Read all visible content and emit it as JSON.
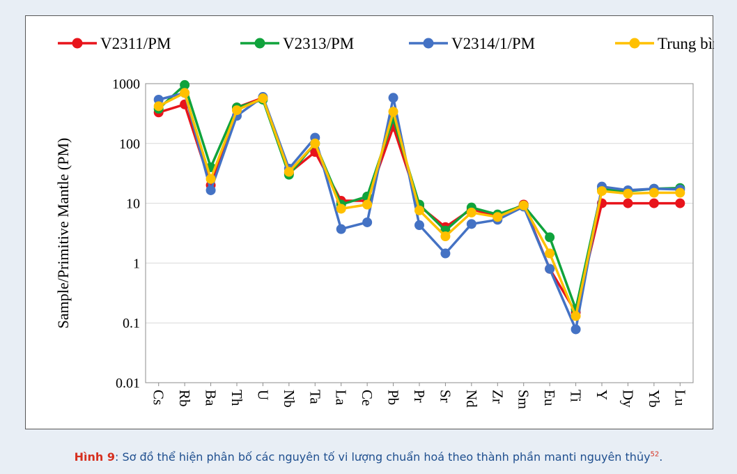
{
  "caption": {
    "label": "Hình 9",
    "text": ": Sơ đồ thể hiện phân bố các nguyên tố vi lượng chuẩn hoá theo thành phần manti nguyên thủy",
    "ref": "52",
    "end": "."
  },
  "chart_data": {
    "type": "line",
    "ylabel": "Sample/Primitive Mantle (PM)",
    "yscale": "log",
    "ylim": [
      0.01,
      1000
    ],
    "yticks": [
      "0.01",
      "0.1",
      "1",
      "10",
      "100",
      "1000"
    ],
    "grid": true,
    "legend_position": "top",
    "categories": [
      "Cs",
      "Rb",
      "Ba",
      "Th",
      "U",
      "Nb",
      "Ta",
      "La",
      "Ce",
      "Pb",
      "Pr",
      "Sr",
      "Nd",
      "Zr",
      "Sm",
      "Eu",
      "Ti",
      "Y",
      "Dy",
      "Yb",
      "Lu"
    ],
    "series": [
      {
        "name": "V2311/PM",
        "color": "#e8141b",
        "values": [
          330,
          450,
          20,
          400,
          580,
          32,
          72,
          11,
          11,
          190,
          9,
          4,
          8,
          6,
          9.5,
          0.8,
          0.15,
          10,
          10,
          10,
          10
        ]
      },
      {
        "name": "V2313/PM",
        "color": "#10a33c",
        "values": [
          380,
          950,
          40,
          400,
          540,
          30,
          100,
          9.5,
          13,
          260,
          9.5,
          3.5,
          8.5,
          6.5,
          9.2,
          2.7,
          0.17,
          17,
          16,
          17.5,
          18
        ]
      },
      {
        "name": "V2314/1/PM",
        "color": "#4472c4",
        "values": [
          540,
          700,
          16.5,
          290,
          600,
          38,
          125,
          3.7,
          4.8,
          580,
          4.3,
          1.45,
          4.5,
          5.3,
          8.8,
          0.8,
          0.078,
          19,
          16.5,
          17.5,
          17
        ]
      },
      {
        "name": "Trung bình/PM",
        "color": "#ffc000",
        "values": [
          420,
          700,
          25.5,
          360,
          570,
          33.5,
          100,
          8.1,
          9.5,
          340,
          7.6,
          2.8,
          7.0,
          5.9,
          9.2,
          1.45,
          0.13,
          16,
          14.5,
          15,
          15
        ]
      }
    ]
  }
}
